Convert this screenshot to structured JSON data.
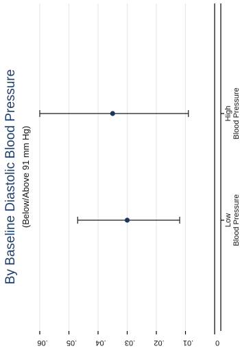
{
  "chart_data": {
    "type": "scatter",
    "title": "By Baseline Diastolic Blood Pressure",
    "subtitle": "(Below/Above 91 mm Hg)",
    "categories": [
      [
        "Low",
        "Blood Pressure"
      ],
      [
        "High",
        "Blood Pressure"
      ]
    ],
    "values": [
      0.03,
      0.035
    ],
    "ci_low": [
      0.012,
      0.009
    ],
    "ci_high": [
      0.047,
      0.06
    ],
    "value_axis": {
      "ticks": [
        0,
        0.01,
        0.02,
        0.03,
        0.04,
        0.05,
        0.06
      ],
      "tick_labels": [
        "0",
        ".01",
        ".02",
        ".03",
        ".04",
        ".05",
        ".06"
      ],
      "range": [
        0,
        0.06
      ]
    },
    "grid": true,
    "orientation": "rotated 90 degrees counter-clockwise",
    "colors": {
      "title": "#1f3f6e",
      "point": "#1c355e",
      "grid": "#e6e6e6"
    }
  }
}
